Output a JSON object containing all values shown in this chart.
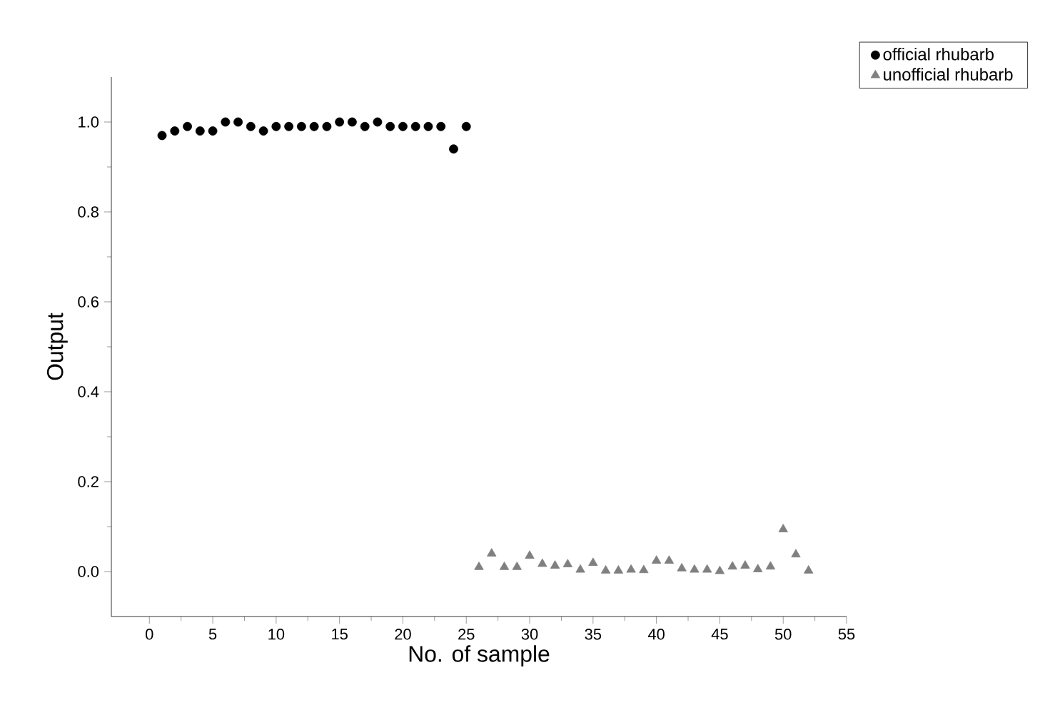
{
  "chart_data": {
    "type": "scatter",
    "xlabel": "No. of sample",
    "ylabel": "Output",
    "xlim": [
      -3,
      55
    ],
    "xticks": [
      0,
      5,
      10,
      15,
      20,
      25,
      30,
      35,
      40,
      45,
      50,
      55
    ],
    "ylim": [
      -0.1,
      1.1
    ],
    "yticks": [
      {
        "value": 0,
        "label": "0.0"
      },
      {
        "value": 0.2,
        "label": "0.2"
      },
      {
        "value": 0.4,
        "label": "0.4"
      },
      {
        "value": 0.6,
        "label": "0.6"
      },
      {
        "value": 0.8,
        "label": "0.8"
      },
      {
        "value": 1,
        "label": "1.0"
      }
    ],
    "legend": "top right",
    "series": [
      {
        "name": "official rhubarb",
        "color": "#000000",
        "marker": "circle",
        "x": [
          1,
          2,
          3,
          4,
          5,
          6,
          7,
          8,
          9,
          10,
          11,
          12,
          13,
          14,
          15,
          16,
          17,
          18,
          19,
          20,
          21,
          22,
          23,
          24,
          25
        ],
        "values": [
          0.97,
          0.98,
          0.99,
          0.98,
          0.98,
          1.0,
          1.0,
          0.99,
          0.98,
          0.99,
          0.99,
          0.99,
          0.99,
          0.99,
          1.0,
          1.0,
          0.99,
          1.0,
          0.99,
          0.99,
          0.99,
          0.99,
          0.99,
          0.94,
          0.99
        ]
      },
      {
        "name": "unofficial rhubarb",
        "color": "#808080",
        "marker": "triangle",
        "x": [
          26,
          27,
          28,
          29,
          30,
          31,
          32,
          33,
          34,
          35,
          36,
          37,
          38,
          39,
          40,
          41,
          42,
          43,
          44,
          45,
          46,
          47,
          48,
          49,
          50,
          51,
          52
        ],
        "values": [
          0.01,
          0.04,
          0.01,
          0.01,
          0.035,
          0.017,
          0.013,
          0.016,
          0.004,
          0.019,
          0.002,
          0.002,
          0.004,
          0.003,
          0.024,
          0.024,
          0.007,
          0.004,
          0.004,
          0.001,
          0.011,
          0.013,
          0.005,
          0.011,
          0.094,
          0.038,
          0.002
        ]
      }
    ]
  }
}
